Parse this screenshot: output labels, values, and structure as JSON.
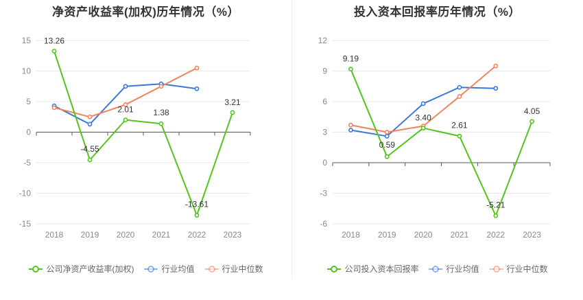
{
  "chart_data": [
    {
      "type": "line",
      "title": "净资产收益率(加权)历年情况（%）",
      "categories": [
        "2018",
        "2019",
        "2020",
        "2021",
        "2022",
        "2023"
      ],
      "ylim": [
        -15,
        15
      ],
      "yticks": [
        -15,
        -10,
        -5,
        0,
        5,
        10,
        15
      ],
      "ytick_labels": [
        "-15",
        "-10",
        "-5",
        "0",
        "5",
        "10",
        "15"
      ],
      "grid": true,
      "legend_position": "bottom",
      "series": [
        {
          "name": "公司净资产收益率(加权)",
          "color": "#52c41a",
          "values": [
            13.26,
            -4.55,
            2.01,
            1.38,
            -13.61,
            3.21
          ],
          "labels": [
            "13.26",
            "-4.55",
            "2.01",
            "1.38",
            "-13.61",
            "3.21"
          ]
        },
        {
          "name": "行业均值",
          "color": "#3a78d8",
          "values": [
            4.3,
            1.3,
            7.5,
            7.9,
            7.1,
            null
          ]
        },
        {
          "name": "行业中位数",
          "color": "#f0845a",
          "values": [
            4.0,
            2.5,
            4.5,
            7.5,
            10.5,
            null
          ]
        }
      ]
    },
    {
      "type": "line",
      "title": "投入资本回报率历年情况（%）",
      "categories": [
        "2018",
        "2019",
        "2020",
        "2021",
        "2022",
        "2023"
      ],
      "ylim": [
        -6,
        12
      ],
      "yticks": [
        -6,
        -3,
        0,
        3,
        6,
        9,
        12
      ],
      "ytick_labels": [
        "-6",
        "-3",
        "0",
        "3",
        "6",
        "9",
        "12"
      ],
      "grid": true,
      "legend_position": "bottom",
      "series": [
        {
          "name": "公司投入资本回报率",
          "color": "#52c41a",
          "values": [
            9.19,
            0.59,
            3.4,
            2.61,
            -5.21,
            4.05
          ],
          "labels": [
            "9.19",
            "0.59",
            "3.40",
            "2.61",
            "-5.21",
            "4.05"
          ]
        },
        {
          "name": "行业均值",
          "color": "#3a78d8",
          "values": [
            3.2,
            2.6,
            5.8,
            7.4,
            7.3,
            null
          ]
        },
        {
          "name": "行业中位数",
          "color": "#f0845a",
          "values": [
            3.7,
            3.0,
            3.6,
            6.5,
            9.5,
            null
          ]
        }
      ]
    }
  ]
}
